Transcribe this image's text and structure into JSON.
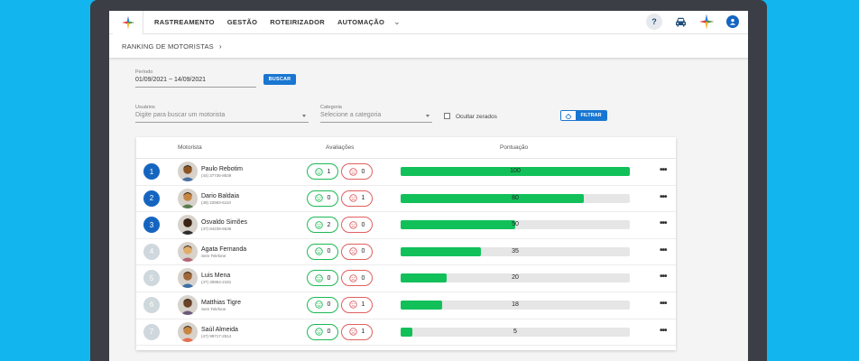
{
  "nav": {
    "items": [
      "RASTREAMENTO",
      "GESTÃO",
      "ROTEIRIZADOR",
      "AUTOMAÇÃO"
    ],
    "help_label": "?"
  },
  "breadcrumb": "RANKING DE MOTORISTAS",
  "filters": {
    "period_label": "Período",
    "period_value": "01/09/2021 ~ 14/09/2021",
    "search_button": "BUSCAR",
    "users_label": "Usuários",
    "users_placeholder": "Digite para buscar um motorista",
    "category_label": "Categoria",
    "category_placeholder": "Selecione a categoria",
    "hide_zeros_label": "Ocultar zerados",
    "filter_button": "FILTRAR"
  },
  "table": {
    "headers": {
      "driver": "Motorista",
      "ratings": "Avaliações",
      "score": "Pontuação"
    },
    "rows": [
      {
        "rank": "1",
        "name": "Paulo Rebotim",
        "phone": "(44) 37736-8639",
        "positive": "1",
        "negative": "0",
        "score": 100,
        "score_label": "100"
      },
      {
        "rank": "2",
        "name": "Dario Baldaia",
        "phone": "(49) 22593-5110",
        "positive": "0",
        "negative": "1",
        "score": 80,
        "score_label": "80"
      },
      {
        "rank": "3",
        "name": "Osvaldo Simões",
        "phone": "(47) 84239-5636",
        "positive": "2",
        "negative": "0",
        "score": 50,
        "score_label": "50"
      },
      {
        "rank": "4",
        "name": "Agata Fernanda",
        "phone": "Sem Telefone",
        "positive": "0",
        "negative": "0",
        "score": 35,
        "score_label": "35"
      },
      {
        "rank": "5",
        "name": "Luis Mena",
        "phone": "(47) 30954-2181",
        "positive": "0",
        "negative": "0",
        "score": 20,
        "score_label": "20"
      },
      {
        "rank": "6",
        "name": "Matthias Tigre",
        "phone": "Sem Telefone",
        "positive": "0",
        "negative": "1",
        "score": 18,
        "score_label": "18"
      },
      {
        "rank": "7",
        "name": "Saúl Almeida",
        "phone": "(47) 99717-2514",
        "positive": "0",
        "negative": "1",
        "score": 5,
        "score_label": "5"
      }
    ]
  },
  "colors": {
    "rank_top": "#1565c0",
    "rank_other": "#cfd8dc",
    "bar_fill": "#12c05a",
    "positive": "#1db954",
    "negative": "#e06060"
  }
}
